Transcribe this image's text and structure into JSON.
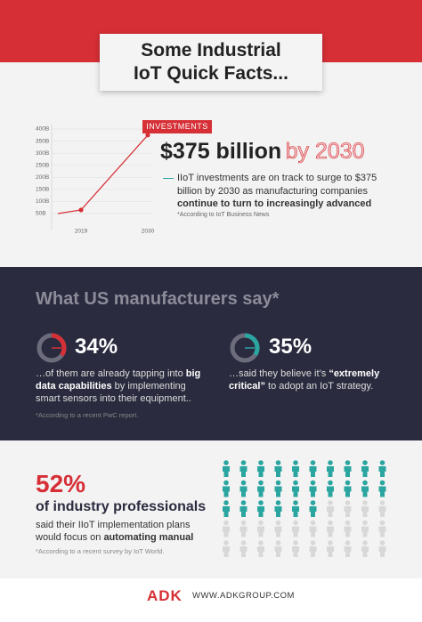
{
  "header": {
    "title_lines": [
      "Some Industrial",
      "IoT Quick Facts..."
    ]
  },
  "investments": {
    "tag": "INVESTMENTS",
    "headline": "$375 billion",
    "headline_suffix": "by 2030",
    "body": [
      "IIoT investments are on track to surge to $375 billion by 2030 as manufacturing companies",
      "continue to turn to increasingly advanced"
    ],
    "note": "*According to IoT Business News"
  },
  "chart_data": {
    "type": "line",
    "categories": [
      null,
      "2019",
      "2030"
    ],
    "values": [
      50,
      65,
      375
    ],
    "color": "#d62f36",
    "ylim": [
      0,
      420
    ],
    "yticks": [
      {
        "value": 50,
        "label": "50B"
      },
      {
        "value": 100,
        "label": "100B"
      },
      {
        "value": 150,
        "label": "150B"
      },
      {
        "value": 200,
        "label": "200B"
      },
      {
        "value": 250,
        "label": "250B"
      },
      {
        "value": 300,
        "label": "300B"
      },
      {
        "value": 350,
        "label": "350B"
      },
      {
        "value": 400,
        "label": "400B"
      }
    ]
  },
  "manufacturers": {
    "title": "What US manufacturers say*",
    "stats": [
      {
        "value": "34%",
        "text": [
          "…of them are already tapping into",
          "big data capabilities",
          " by implementing smart sensors into their equipment.."
        ]
      },
      {
        "value": "35%",
        "text": [
          "…said they believe it’s ",
          "“extremely critical”",
          " to adopt an IoT strategy."
        ]
      }
    ],
    "note": "*According to a recent PwC report."
  },
  "professionals": {
    "value": "52%",
    "lead": "of industry professionals",
    "text": [
      "said their IIoT implementation plans would focus on ",
      "automating manual"
    ],
    "note": "*According to a recent survey by IoT World."
  },
  "footer": {
    "brand": "ADK",
    "url": "WWW.ADKGROUP.COM"
  }
}
